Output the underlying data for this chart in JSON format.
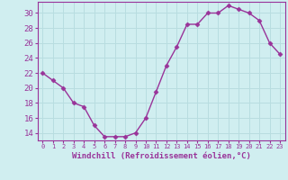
{
  "x": [
    0,
    1,
    2,
    3,
    4,
    5,
    6,
    7,
    8,
    9,
    10,
    11,
    12,
    13,
    14,
    15,
    16,
    17,
    18,
    19,
    20,
    21,
    22,
    23
  ],
  "y": [
    22,
    21,
    20,
    18,
    17.5,
    15,
    13.5,
    13.5,
    13.5,
    14,
    16,
    19.5,
    23,
    25.5,
    28.5,
    28.5,
    30,
    30,
    31,
    30.5,
    30,
    29,
    26,
    24.5
  ],
  "line_color": "#993399",
  "marker": "D",
  "marker_size": 2.5,
  "background_color": "#d0eef0",
  "grid_color": "#b8dde0",
  "xlabel": "Windchill (Refroidissement éolien,°C)",
  "xlabel_color": "#993399",
  "tick_color": "#993399",
  "yticks": [
    14,
    16,
    18,
    20,
    22,
    24,
    26,
    28,
    30
  ],
  "xtick_labels": [
    "0",
    "1",
    "2",
    "3",
    "4",
    "5",
    "6",
    "7",
    "8",
    "9",
    "10",
    "11",
    "12",
    "13",
    "14",
    "15",
    "16",
    "17",
    "18",
    "19",
    "20",
    "21",
    "22",
    "23"
  ],
  "ylim": [
    13,
    31.5
  ],
  "xlim": [
    -0.5,
    23.5
  ]
}
